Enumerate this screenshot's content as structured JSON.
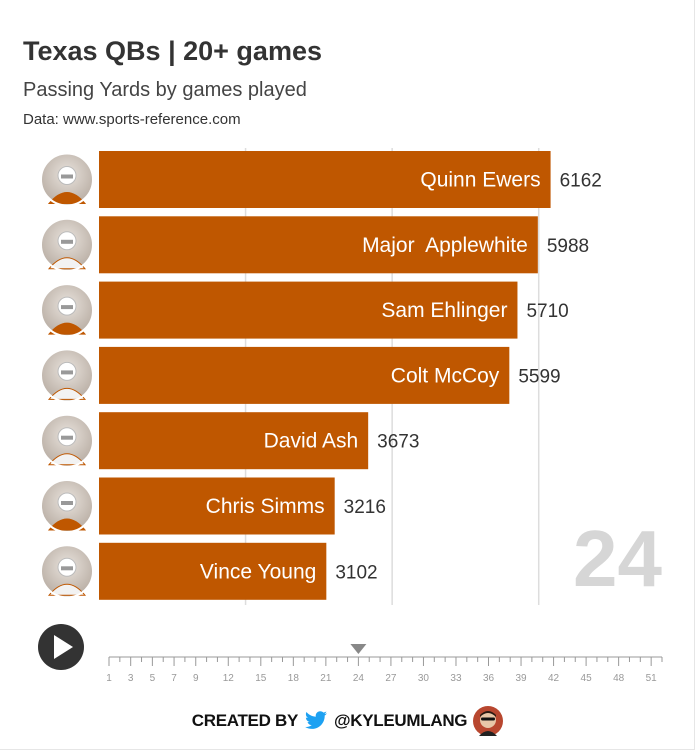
{
  "header": {
    "title": "Texas QBs | 20+ games",
    "subtitle": "Passing Yards by games played",
    "source": "Data: www.sports-reference.com"
  },
  "chart_data": {
    "type": "bar",
    "orientation": "horizontal",
    "title": "Texas QBs | 20+ games",
    "subtitle": "Passing Yards by games played",
    "categories": [
      "Quinn Ewers",
      "Major  Applewhite",
      "Sam Ehlinger",
      "Colt McCoy",
      "David Ash",
      "Chris Simms",
      "Vince Young"
    ],
    "values": [
      6162,
      5988,
      5710,
      5599,
      3673,
      3216,
      3102
    ],
    "value_labels": [
      "6162",
      "5988",
      "5710",
      "5599",
      "3673",
      "3216",
      "3102"
    ],
    "xlim": [
      0,
      7000
    ],
    "grid_lines": [
      2000,
      4000,
      6000
    ],
    "current_period": "24",
    "bar_color": "#bf5700"
  },
  "timeline": {
    "current_value": 24,
    "min": 1,
    "max": 52,
    "tick_labels": [
      "1",
      "3",
      "5",
      "7",
      "9",
      "12",
      "15",
      "18",
      "21",
      "24",
      "27",
      "30",
      "33",
      "36",
      "39",
      "42",
      "45",
      "48",
      "51"
    ]
  },
  "footer": {
    "created_by": "CREATED BY",
    "handle": "@KYLEUMLANG"
  },
  "colors": {
    "bar": "#bf5700",
    "play_button": "#333333",
    "twitter": "#1da1f2"
  }
}
